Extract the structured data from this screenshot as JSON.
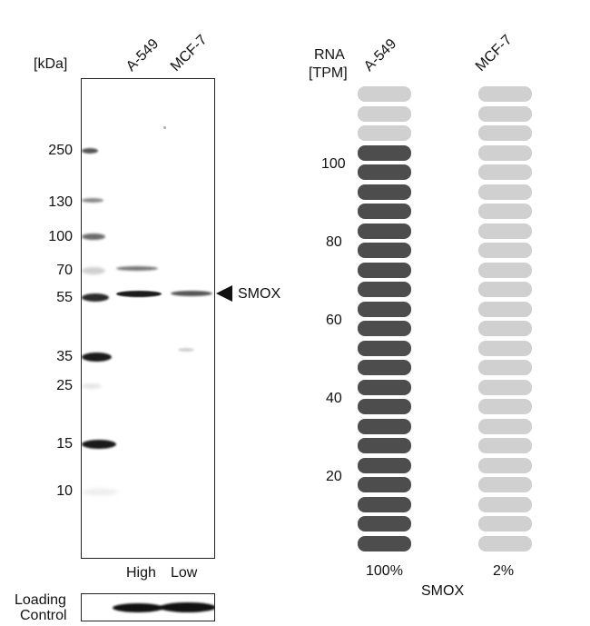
{
  "western_blot": {
    "kda_label": "[kDa]",
    "lanes": [
      "A-549",
      "MCF-7"
    ],
    "markers": [
      "250",
      "130",
      "100",
      "70",
      "55",
      "35",
      "25",
      "15",
      "10"
    ],
    "target_label": "SMOX",
    "lane_levels": [
      "High",
      "Low"
    ],
    "loading_control_label_line1": "Loading",
    "loading_control_label_line2": "Control"
  },
  "rna": {
    "header_line1": "RNA",
    "header_line2": "[TPM]",
    "cell_lines": [
      "A-549",
      "MCF-7"
    ],
    "y_ticks": [
      "100",
      "80",
      "60",
      "40",
      "20"
    ],
    "percentages": [
      "100%",
      "2%"
    ],
    "gene_label": "SMOX",
    "segments_total": 24,
    "segments_filled": [
      21,
      0
    ],
    "colors": {
      "filled": "#4d4d4d",
      "empty": "#d0d0d0"
    }
  }
}
